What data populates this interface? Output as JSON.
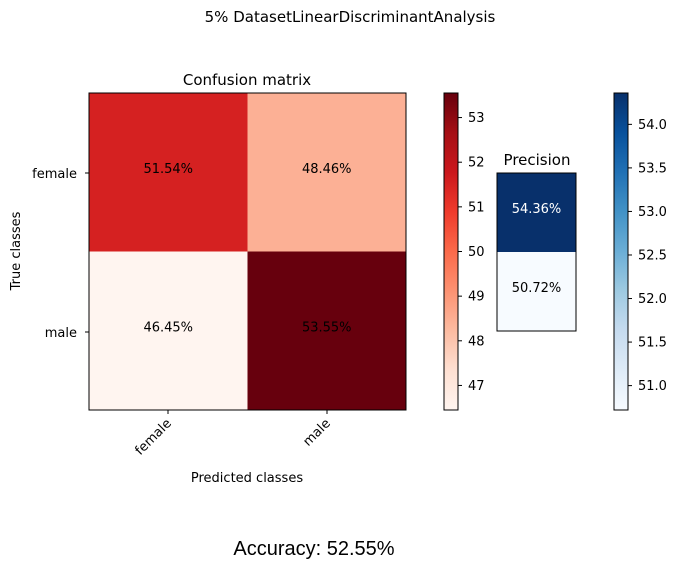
{
  "suptitle": "5% DatasetLinearDiscriminantAnalysis",
  "accuracy_text": "Accuracy: 52.55%",
  "chart_data": [
    {
      "type": "heatmap",
      "title": "Confusion matrix",
      "xlabel": "Predicted classes",
      "ylabel": "True classes",
      "x_categories": [
        "female",
        "male"
      ],
      "y_categories": [
        "female",
        "male"
      ],
      "values": [
        [
          51.54,
          48.46
        ],
        [
          46.45,
          53.55
        ]
      ],
      "cell_labels": [
        [
          "51.54%",
          "48.46%"
        ],
        [
          "46.45%",
          "53.55%"
        ]
      ],
      "colormap": "Reds",
      "colorbar": {
        "range": [
          46.45,
          53.55
        ],
        "ticks": [
          47,
          48,
          49,
          50,
          51,
          52,
          53
        ]
      }
    },
    {
      "type": "heatmap",
      "title": "Precision",
      "values": [
        54.36,
        50.72
      ],
      "cell_labels": [
        "54.36%",
        "50.72%"
      ],
      "colormap": "Blues",
      "colorbar": {
        "range": [
          50.72,
          54.36
        ],
        "ticks": [
          "51.0",
          "51.5",
          "52.0",
          "52.5",
          "53.0",
          "53.5",
          "54.0"
        ]
      }
    }
  ]
}
